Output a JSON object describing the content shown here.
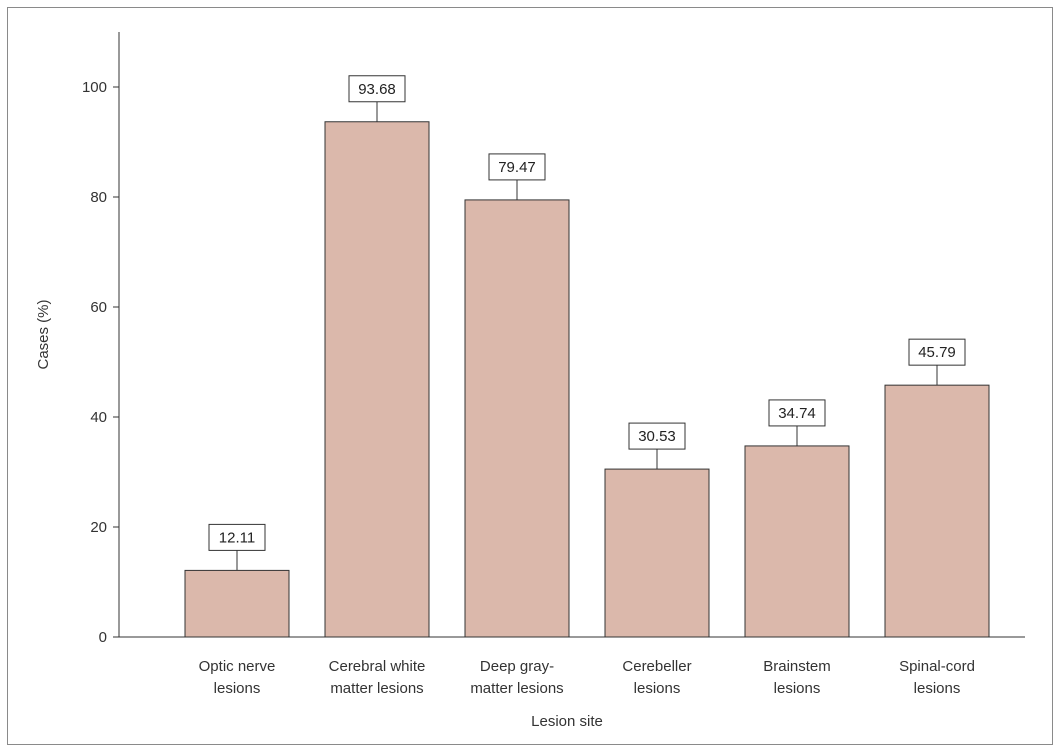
{
  "chart_data": {
    "type": "bar",
    "categories": [
      [
        "Optic nerve",
        "lesions"
      ],
      [
        "Cerebral white",
        "matter lesions"
      ],
      [
        "Deep gray-",
        "matter lesions"
      ],
      [
        "Cerebeller",
        "lesions"
      ],
      [
        "Brainstem",
        "lesions"
      ],
      [
        "Spinal-cord",
        "lesions"
      ]
    ],
    "values": [
      12.11,
      93.68,
      79.47,
      30.53,
      34.74,
      45.79
    ],
    "data_labels": [
      "12.11",
      "93.68",
      "79.47",
      "30.53",
      "34.74",
      "45.79"
    ],
    "xlabel": "Lesion site",
    "ylabel": "Cases (%)",
    "ylim": [
      0,
      110
    ],
    "yticks": [
      0,
      20,
      40,
      60,
      80,
      100
    ],
    "bar_color": "#dbb8ab",
    "bar_edge_color": "#333333",
    "grid": false,
    "legend": "none"
  }
}
